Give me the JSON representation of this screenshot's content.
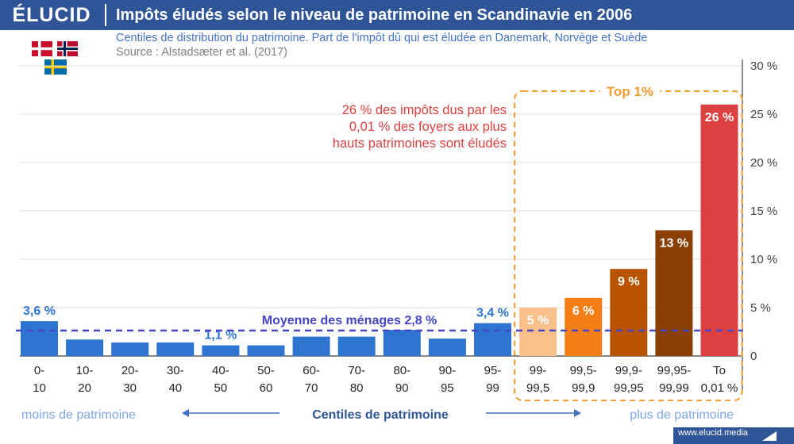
{
  "header": {
    "logo": "ÉLUCID",
    "title": "Impôts éludés selon le niveau de patrimoine en Scandinavie en 2006",
    "subtitle": "Centiles de distribution du patrimoine. Part de l'impôt dû qui est éludée en Danemark, Norvège et Suède",
    "source": "Source : Alstadsæter et al. (2017)"
  },
  "flags": [
    "denmark-flag",
    "norway-flag",
    "sweden-flag"
  ],
  "footer": {
    "url": "www.elucid.media"
  },
  "chart_data": {
    "type": "bar",
    "categories": [
      [
        "0-",
        "10"
      ],
      [
        "10-",
        "20"
      ],
      [
        "20-",
        "30"
      ],
      [
        "30-",
        "40"
      ],
      [
        "40-",
        "50"
      ],
      [
        "50-",
        "60"
      ],
      [
        "60-",
        "70"
      ],
      [
        "70-",
        "80"
      ],
      [
        "80-",
        "90"
      ],
      [
        "90-",
        "95"
      ],
      [
        "95-",
        "99"
      ],
      [
        "99-",
        "99,5"
      ],
      [
        "99,5-",
        "99,9"
      ],
      [
        "99,9-",
        "99,95"
      ],
      [
        "99,95-",
        "99,99"
      ],
      [
        "To",
        "0,01 %"
      ]
    ],
    "values": [
      3.6,
      1.7,
      1.4,
      1.4,
      1.1,
      1.1,
      2.0,
      2.0,
      2.7,
      1.8,
      3.4,
      5,
      6,
      9,
      13,
      26
    ],
    "colors": [
      "#2e75d2",
      "#2e75d2",
      "#2e75d2",
      "#2e75d2",
      "#2e75d2",
      "#2e75d2",
      "#2e75d2",
      "#2e75d2",
      "#2e75d2",
      "#2e75d2",
      "#2e75d2",
      "#f9c08a",
      "#f57f17",
      "#b85400",
      "#8a3f05",
      "#dc4040"
    ],
    "data_labels": [
      {
        "index": 0,
        "text": "3,6 %",
        "position": "above",
        "color": "#2e75d2"
      },
      {
        "index": 4,
        "text": "1,1 %",
        "position": "above",
        "color": "#2e75d2"
      },
      {
        "index": 10,
        "text": "3,4 %",
        "position": "above",
        "color": "#2e75d2"
      },
      {
        "index": 11,
        "text": "5 %",
        "position": "inside",
        "color": "#ffffff"
      },
      {
        "index": 12,
        "text": "6 %",
        "position": "inside",
        "color": "#ffffff"
      },
      {
        "index": 13,
        "text": "9 %",
        "position": "inside",
        "color": "#ffffff"
      },
      {
        "index": 14,
        "text": "13 %",
        "position": "inside",
        "color": "#ffffff"
      },
      {
        "index": 15,
        "text": "26 %",
        "position": "inside",
        "color": "#ffffff"
      }
    ],
    "ylim": [
      0,
      30
    ],
    "yticks": [
      0,
      5,
      10,
      15,
      20,
      25,
      30
    ],
    "ytick_labels": [
      "0",
      "5 %",
      "10 %",
      "15 %",
      "20 %",
      "25 %",
      "30 %"
    ],
    "y_axis_side": "right",
    "grid": true,
    "average": {
      "value": 2.8,
      "label": "Moyenne des ménages 2,8 %",
      "color": "#4545c8"
    },
    "top_group": {
      "label": "Top 1%",
      "first_index": 11,
      "last_index": 15,
      "color": "#f39c32"
    },
    "annotation": {
      "lines": [
        "26 % des impôts dus par les",
        "0,01 % des foyers aux plus",
        "hauts patrimoines sont éludés"
      ],
      "color": "#dc4040"
    },
    "bottom_axis": {
      "left": "moins de patrimoine",
      "center": "Centiles de patrimoine",
      "right": "plus de patrimoine"
    }
  }
}
